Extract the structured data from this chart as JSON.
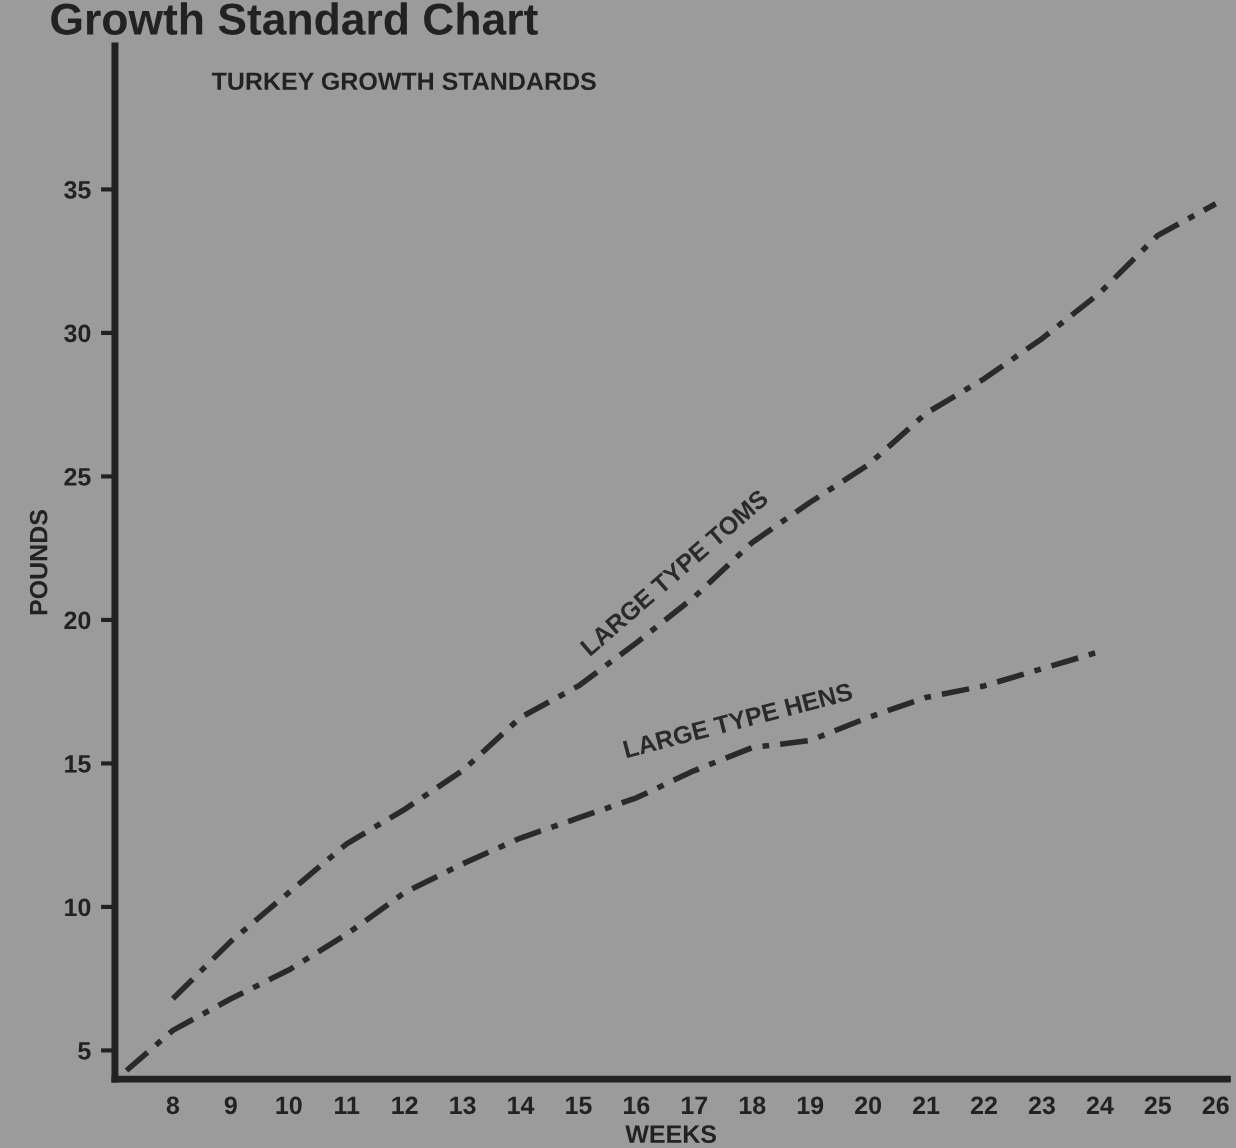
{
  "chart_data": {
    "type": "line",
    "title": "Growth Standard Chart",
    "subtitle": "TURKEY GROWTH STANDARDS",
    "xlabel": "WEEKS",
    "ylabel": "POUNDS",
    "xlim": [
      7,
      26.2
    ],
    "ylim": [
      4,
      40
    ],
    "xticks": [
      8,
      9,
      10,
      11,
      12,
      13,
      14,
      15,
      16,
      17,
      18,
      19,
      20,
      21,
      22,
      23,
      24,
      25,
      26
    ],
    "yticks": [
      5,
      10,
      15,
      20,
      25,
      30,
      35
    ],
    "grid": false,
    "legend": false,
    "line_style": "dashed",
    "marker": "none",
    "series": [
      {
        "name": "LARGE TYPE TOMS",
        "color": "#2a2a2a",
        "x": [
          8,
          9,
          10,
          11,
          12,
          13,
          14,
          15,
          16,
          17,
          18,
          19,
          20,
          21,
          22,
          23,
          24,
          25,
          26
        ],
        "values": [
          6.8,
          8.8,
          10.5,
          12.2,
          13.4,
          14.75,
          16.6,
          17.7,
          19.2,
          20.8,
          22.7,
          24.1,
          25.4,
          27.2,
          28.4,
          29.8,
          31.4,
          33.4,
          34.5
        ]
      },
      {
        "name": "LARGE TYPE HENS",
        "color": "#2a2a2a",
        "x": [
          7.2,
          8,
          9,
          10,
          11,
          12,
          13,
          14,
          15,
          16,
          17,
          18,
          19,
          20,
          21,
          22,
          23,
          24
        ],
        "values": [
          4.3,
          5.7,
          6.8,
          7.8,
          9.05,
          10.5,
          11.5,
          12.4,
          13.1,
          13.8,
          14.75,
          15.55,
          15.8,
          16.6,
          17.3,
          17.7,
          18.3,
          18.9
        ]
      }
    ]
  }
}
